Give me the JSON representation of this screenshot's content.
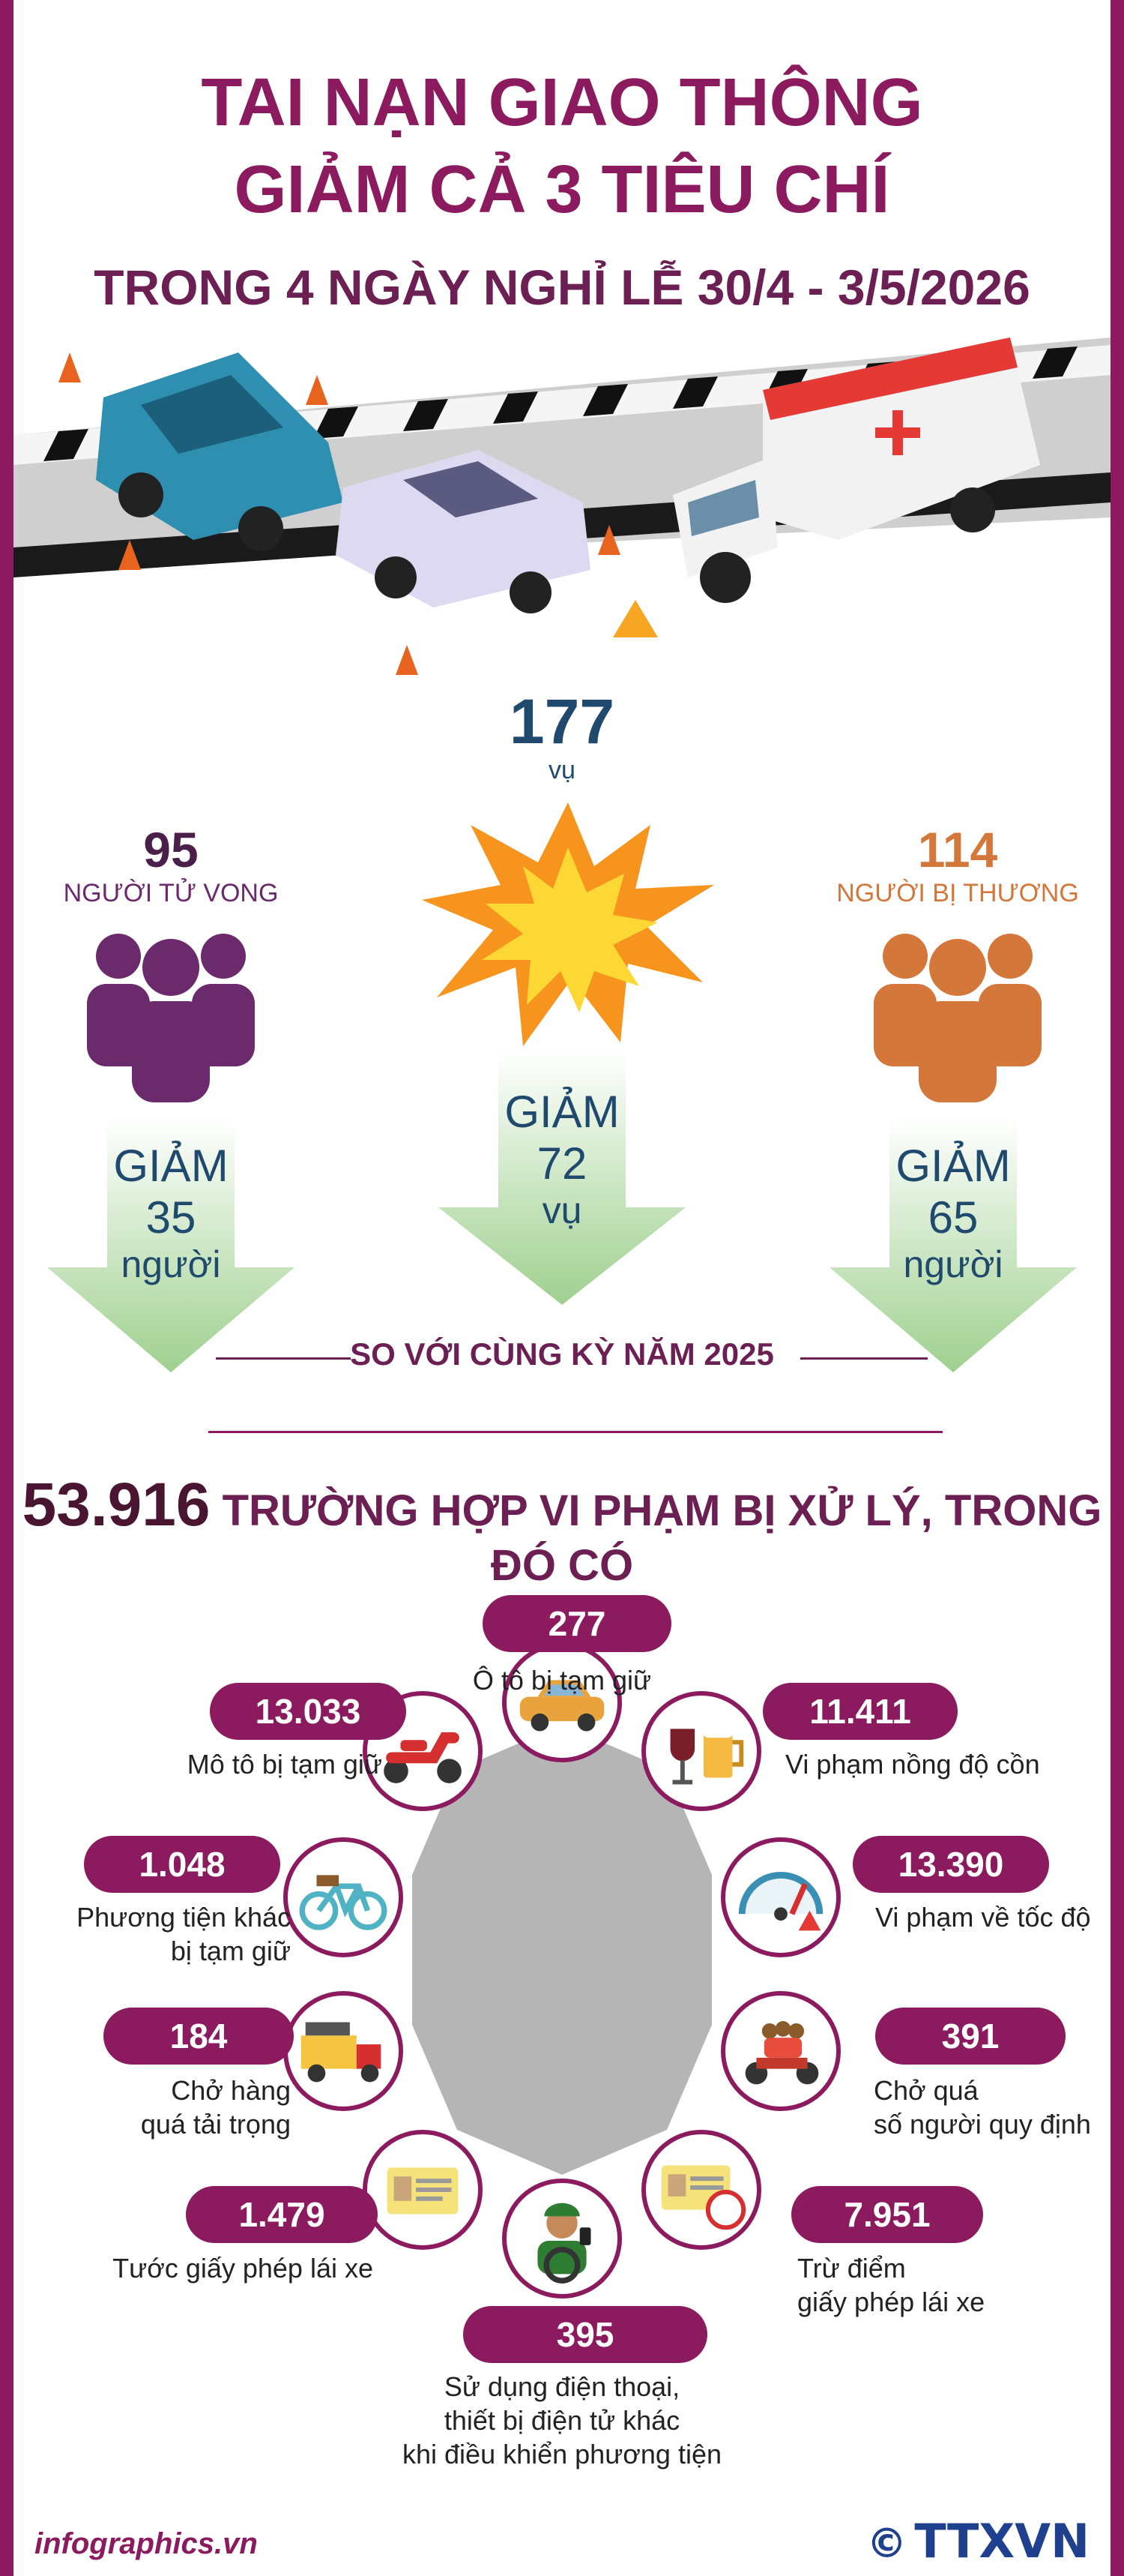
{
  "header": {
    "title_line1": "TAI NẠN GIAO THÔNG",
    "title_line2": "GIẢM CẢ 3 TIÊU CHÍ",
    "subtitle": "TRONG 4 NGÀY NGHỈ LỄ 30/4  - 3/5/2026"
  },
  "stats": {
    "accidents": {
      "value": "177",
      "unit": "vụ",
      "decrease_word": "GIẢM",
      "decrease_value": "72",
      "decrease_unit": "vụ"
    },
    "deaths": {
      "value": "95",
      "label": "NGƯỜI TỬ VONG",
      "decrease_word": "GIẢM",
      "decrease_value": "35",
      "decrease_unit": "người"
    },
    "injuries": {
      "value": "114",
      "label": "NGƯỜI BỊ THƯƠNG",
      "decrease_word": "GIẢM",
      "decrease_value": "65",
      "decrease_unit": "người"
    },
    "comparison": "SO VỚI CÙNG KỲ NĂM 2025"
  },
  "violations": {
    "total": "53.916",
    "headline": " TRƯỜNG HỢP VI PHẠM BỊ XỬ LÝ, TRONG ĐÓ CÓ",
    "items": [
      {
        "value": "277",
        "label": "Ô tô bị tạm giữ",
        "icon": "car-icon"
      },
      {
        "value": "11.411",
        "label": "Vi phạm nồng độ cồn",
        "icon": "alcohol-icon"
      },
      {
        "value": "13.390",
        "label": "Vi phạm về tốc độ",
        "icon": "speedometer-icon"
      },
      {
        "value": "391",
        "label_line1": "Chở quá",
        "label_line2": "số người quy định",
        "icon": "overloaded-motorbike-icon"
      },
      {
        "value": "7.951",
        "label_line1": "Trừ điểm",
        "label_line2": "giấy phép lái xe",
        "icon": "license-points-icon"
      },
      {
        "value": "395",
        "label_line1": "Sử dụng điện thoại,",
        "label_line2": "thiết bị điện tử khác",
        "label_line3": "khi điều khiển phương tiện",
        "icon": "phone-driver-icon"
      },
      {
        "value": "1.479",
        "label": "Tước giấy phép lái xe",
        "icon": "license-revoked-icon"
      },
      {
        "value": "184",
        "label_line1": "Chở hàng",
        "label_line2": "quá tải trọng",
        "icon": "truck-icon"
      },
      {
        "value": "1.048",
        "label_line1": "Phương tiện khác",
        "label_line2": "bị tạm giữ",
        "icon": "bicycle-icon"
      },
      {
        "value": "13.033",
        "label": "Mô tô bị tạm giữ",
        "icon": "scooter-icon"
      }
    ]
  },
  "footer": {
    "site": "infographics.vn",
    "copyright": "©",
    "logo": "TTXVN"
  },
  "colors": {
    "primary": "#8b1a5e",
    "deaths": "#6b2a6b",
    "injuries": "#d4773a",
    "arrow": "#a8d59a",
    "arrow_text": "#1f4a6e"
  }
}
